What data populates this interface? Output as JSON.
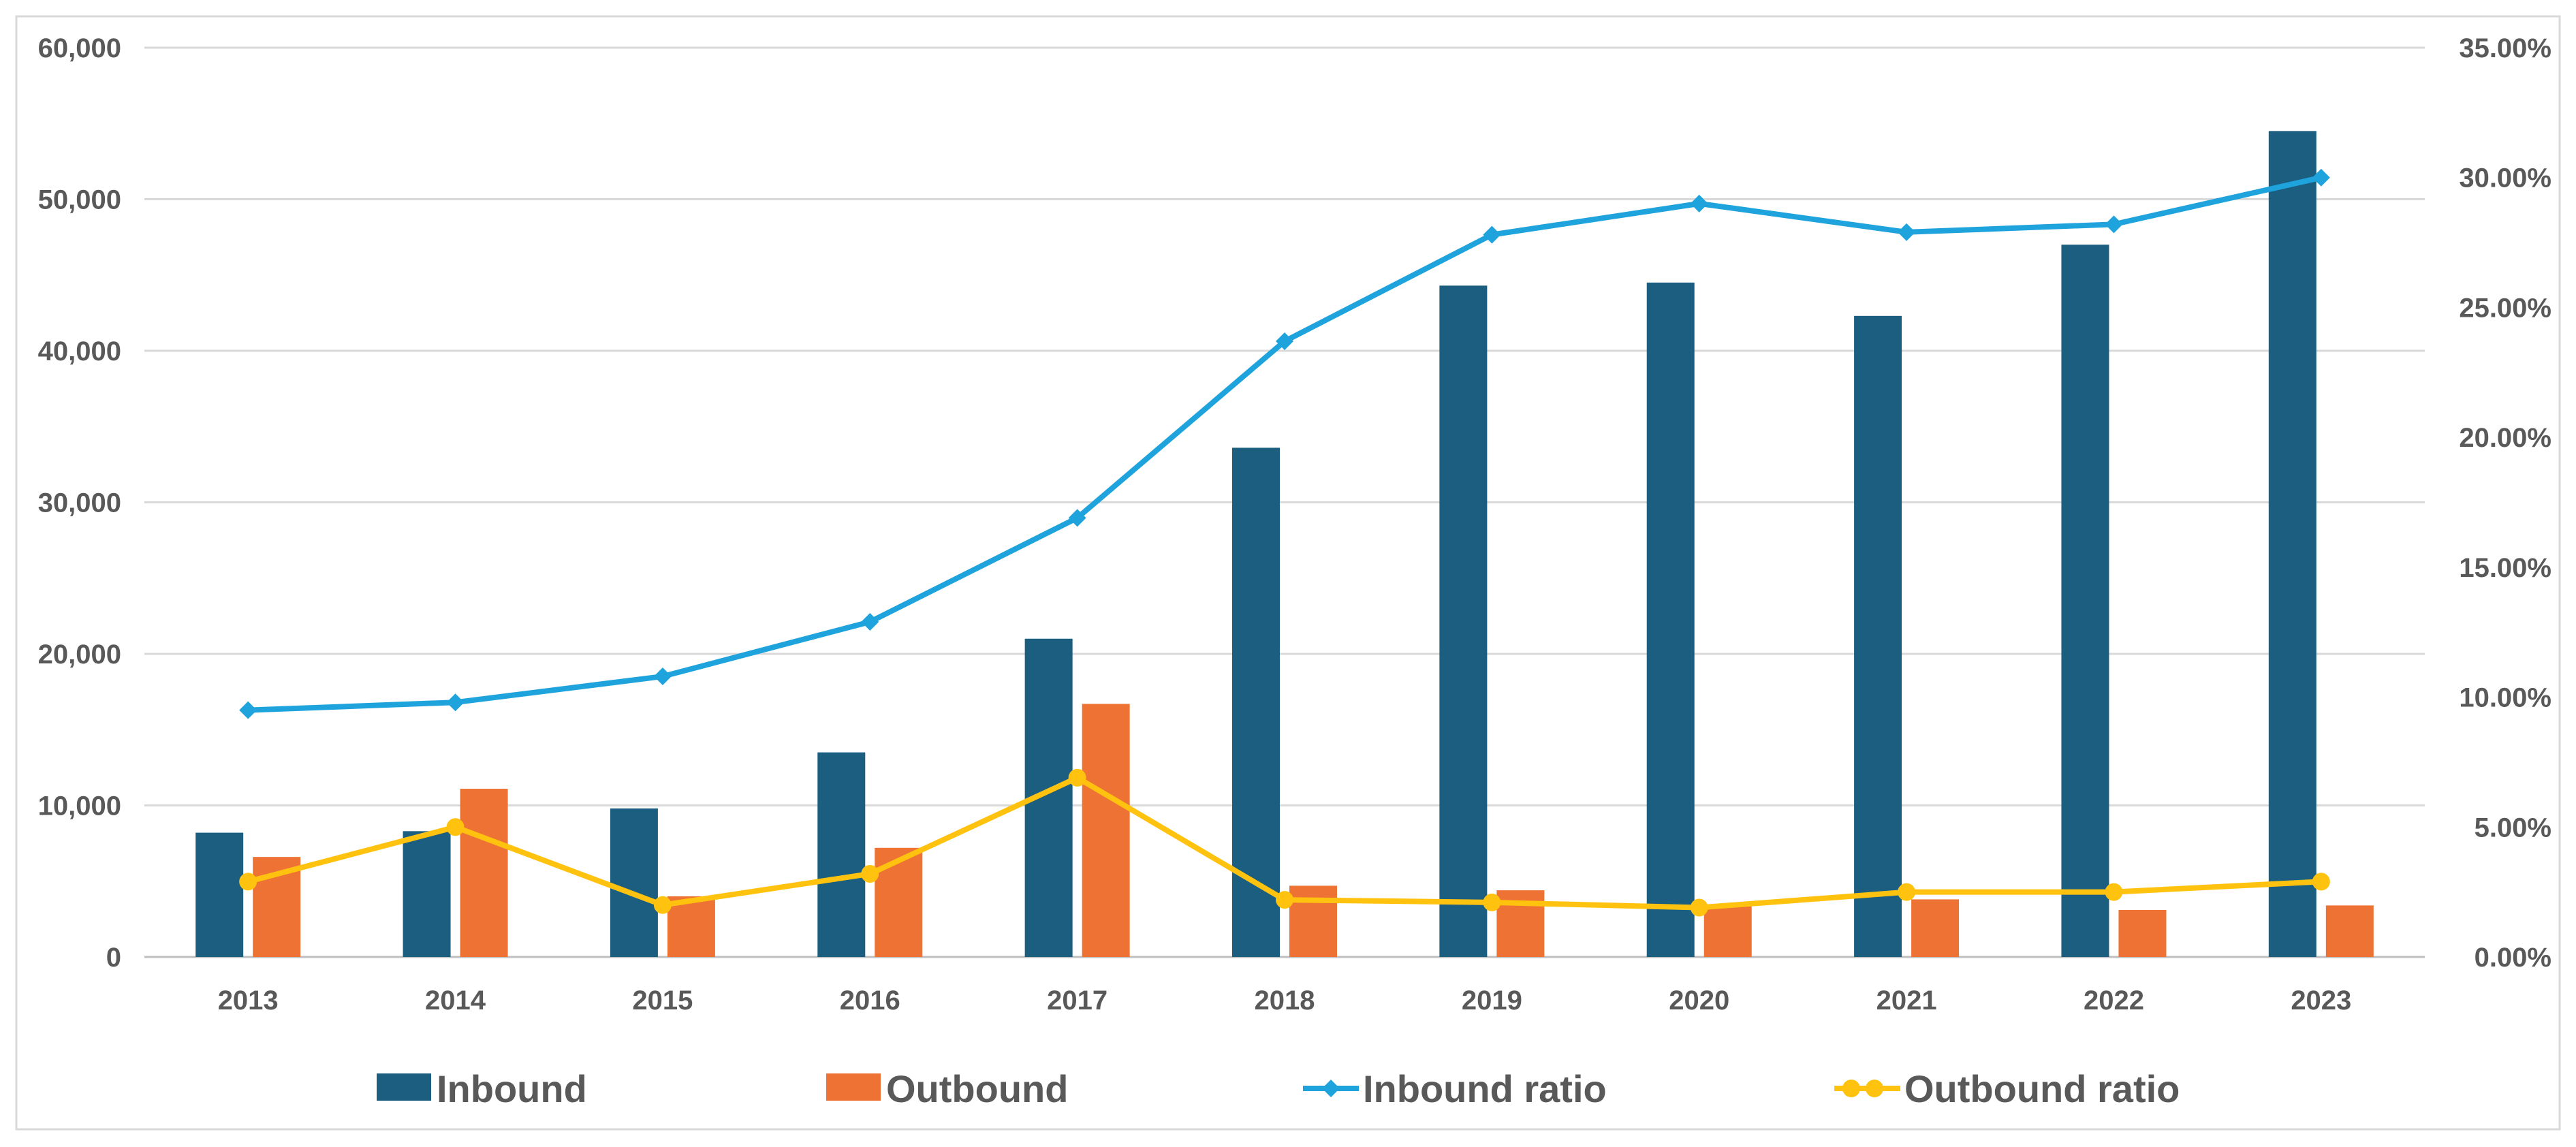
{
  "chart_data": {
    "type": "bar+line",
    "categories": [
      "2013",
      "2014",
      "2015",
      "2016",
      "2017",
      "2018",
      "2019",
      "2020",
      "2021",
      "2022",
      "2023"
    ],
    "bar_series": [
      {
        "name": "Inbound",
        "color": "#1b5e80",
        "values": [
          8200,
          8300,
          9800,
          13500,
          21000,
          33600,
          44300,
          44500,
          42300,
          47000,
          54500
        ]
      },
      {
        "name": "Outbound",
        "color": "#ed7234",
        "values": [
          6600,
          11100,
          4000,
          7200,
          16700,
          4700,
          4400,
          3400,
          3800,
          3100,
          3400
        ]
      }
    ],
    "line_series": [
      {
        "name": "Inbound ratio",
        "color": "#1fa3dd",
        "marker": "diamond",
        "values": [
          9.5,
          9.8,
          10.8,
          12.9,
          16.9,
          23.7,
          27.8,
          29.0,
          27.9,
          28.2,
          30.0
        ]
      },
      {
        "name": "Outbound ratio",
        "color": "#ffc20e",
        "marker": "circle",
        "values": [
          2.9,
          5.0,
          2.0,
          3.2,
          6.9,
          2.2,
          2.1,
          1.9,
          2.5,
          2.5,
          2.9
        ]
      }
    ],
    "y_left": {
      "min": 0,
      "max": 60000,
      "ticks": [
        "0",
        "10,000",
        "20,000",
        "30,000",
        "40,000",
        "50,000",
        "60,000"
      ]
    },
    "y_right": {
      "min": 0,
      "max": 35,
      "ticks": [
        "0.00%",
        "5.00%",
        "10.00%",
        "15.00%",
        "20.00%",
        "25.00%",
        "30.00%",
        "35.00%"
      ]
    },
    "title": "",
    "xlabel": "",
    "ylabel": "",
    "grid": true,
    "legend": [
      "Inbound",
      "Outbound",
      "Inbound ratio",
      "Outbound ratio"
    ],
    "legend_position": "bottom"
  }
}
